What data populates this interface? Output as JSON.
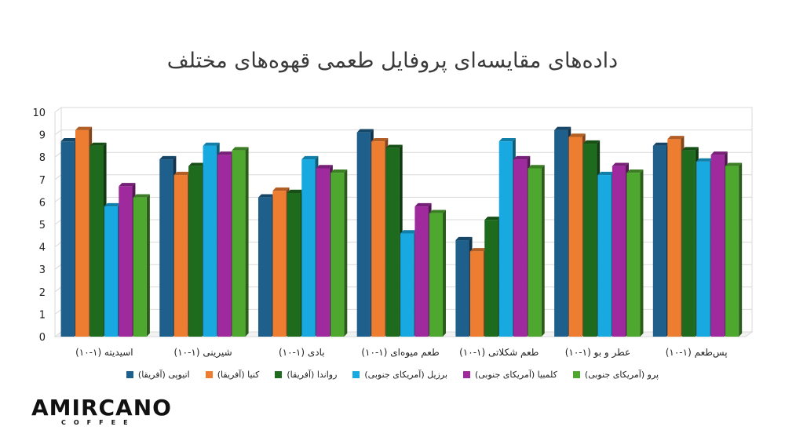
{
  "chart_data": {
    "type": "bar",
    "title": "داده‌های مقایسه‌ای پروفایل طعمی قهوه‌های مختلف",
    "categories": [
      "اسیدیته (۱-۱۰)",
      "شیرینی (۱-۱۰)",
      "بادی (۱-۱۰)",
      "طعم میوه‌ای (۱-۱۰)",
      "طعم شکلاتی (۱-۱۰)",
      "عطر و بو (۱-۱۰)",
      "پس‌طعم (۱-۱۰)"
    ],
    "series": [
      {
        "name": "اتیوپی (آفریقا)",
        "color": "#1f5f8b",
        "values": [
          8.7,
          7.9,
          6.2,
          9.1,
          4.3,
          9.2,
          8.5
        ]
      },
      {
        "name": "کنیا (آفریقا)",
        "color": "#ed7d31",
        "values": [
          9.2,
          7.2,
          6.5,
          8.7,
          3.8,
          8.9,
          8.8
        ]
      },
      {
        "name": "رواندا (آفریقا)",
        "color": "#1e6b1e",
        "values": [
          8.5,
          7.6,
          6.4,
          8.4,
          5.2,
          8.6,
          8.3
        ]
      },
      {
        "name": "برزیل (آمریکای جنوبی)",
        "color": "#17a9e0",
        "values": [
          5.8,
          8.5,
          7.9,
          4.6,
          8.7,
          7.2,
          7.8
        ]
      },
      {
        "name": "کلمبیا (آمریکای جنوبی)",
        "color": "#9e2a9e",
        "values": [
          6.7,
          8.1,
          7.5,
          5.8,
          7.9,
          7.6,
          8.1
        ]
      },
      {
        "name": "پرو (آمریکای جنوبی)",
        "color": "#4ea830",
        "values": [
          6.2,
          8.3,
          7.3,
          5.5,
          7.5,
          7.3,
          7.6
        ]
      }
    ],
    "ylim": [
      0,
      10
    ],
    "yticks": [
      "0",
      "1",
      "2",
      "3",
      "4",
      "5",
      "6",
      "7",
      "8",
      "9",
      "10"
    ],
    "grid": true,
    "legend_position": "bottom"
  },
  "logo": {
    "word": "AMIRCANO",
    "sub": "COFFEE"
  }
}
